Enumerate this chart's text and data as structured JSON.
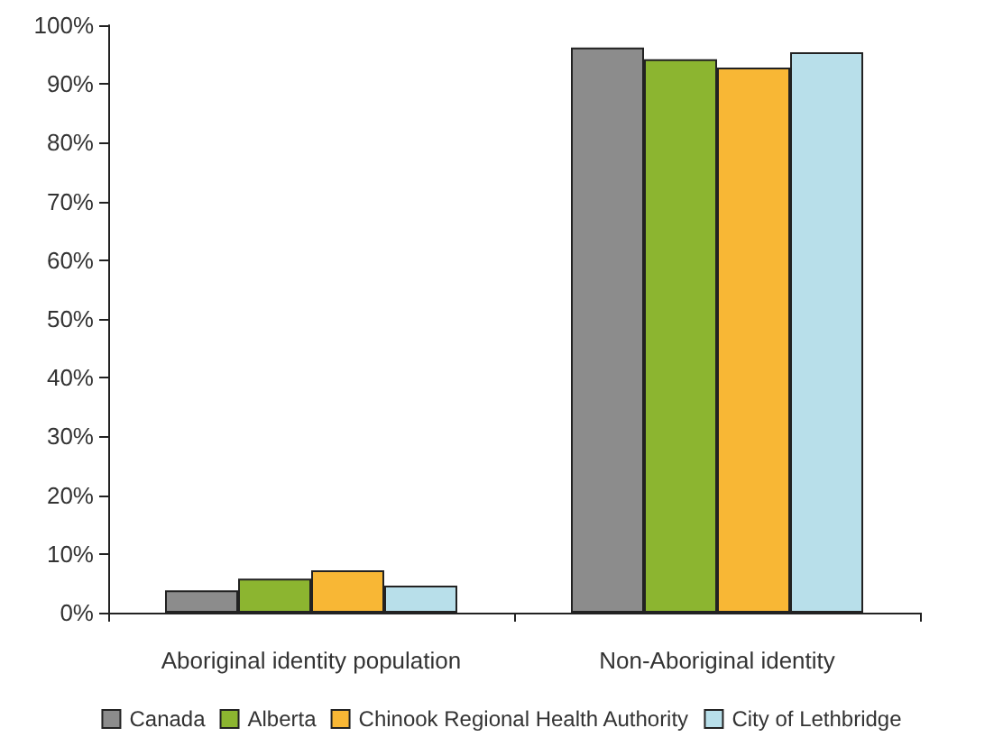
{
  "chart_data": {
    "type": "bar",
    "categories": [
      "Aboriginal identity population",
      "Non-Aboriginal identity"
    ],
    "series": [
      {
        "name": "Canada",
        "color": "#8c8c8c",
        "values": [
          3.8,
          96.2
        ]
      },
      {
        "name": "Alberta",
        "color": "#8cb530",
        "values": [
          5.8,
          94.2
        ]
      },
      {
        "name": "Chinook Regional Health Authority",
        "color": "#f8b735",
        "values": [
          7.2,
          92.8
        ]
      },
      {
        "name": "City of Lethbridge",
        "color": "#b8dfea",
        "values": [
          4.6,
          95.4
        ]
      }
    ],
    "ylim": [
      0,
      100
    ],
    "yticks": [
      {
        "value": 0,
        "label": "0%"
      },
      {
        "value": 10,
        "label": "10%"
      },
      {
        "value": 20,
        "label": "20%"
      },
      {
        "value": 30,
        "label": "30%"
      },
      {
        "value": 40,
        "label": "40%"
      },
      {
        "value": 50,
        "label": "50%"
      },
      {
        "value": 60,
        "label": "60%"
      },
      {
        "value": 70,
        "label": "70%"
      },
      {
        "value": 80,
        "label": "80%"
      },
      {
        "value": 90,
        "label": "90%"
      },
      {
        "value": 100,
        "label": "100%"
      }
    ],
    "grid": false,
    "legend": "bottom"
  }
}
